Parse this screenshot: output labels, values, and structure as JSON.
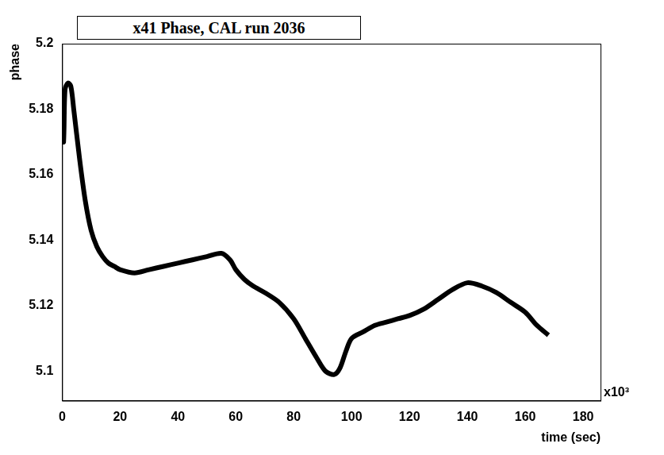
{
  "chart_data": {
    "type": "line",
    "title": "x41 Phase, CAL run 2036",
    "x_label": "time (sec)",
    "y_label": "phase",
    "annotations": [
      "x10³"
    ],
    "x": [
      0,
      0.5,
      1,
      2,
      3,
      4,
      6,
      8,
      10,
      12,
      14,
      16,
      18,
      20,
      25,
      30,
      35,
      40,
      45,
      50,
      55,
      58,
      60,
      63,
      66,
      70,
      75,
      80,
      84,
      88,
      91,
      94,
      96,
      98,
      100,
      104,
      108,
      112,
      116,
      120,
      125,
      130,
      135,
      140,
      145,
      150,
      155,
      160,
      164,
      168
    ],
    "values": [
      5.171,
      5.17,
      5.186,
      5.188,
      5.187,
      5.18,
      5.165,
      5.152,
      5.143,
      5.138,
      5.135,
      5.133,
      5.132,
      5.131,
      5.13,
      5.131,
      5.132,
      5.133,
      5.134,
      5.135,
      5.136,
      5.134,
      5.131,
      5.128,
      5.126,
      5.124,
      5.121,
      5.116,
      5.11,
      5.104,
      5.1,
      5.099,
      5.101,
      5.106,
      5.11,
      5.112,
      5.114,
      5.115,
      5.116,
      5.117,
      5.119,
      5.122,
      5.125,
      5.127,
      5.126,
      5.124,
      5.121,
      5.118,
      5.114,
      5.111
    ],
    "color": "#000000",
    "xlim": [
      0,
      186
    ],
    "xticks": [
      0,
      20,
      40,
      60,
      80,
      100,
      120,
      140,
      160,
      180
    ],
    "ylim": [
      5.091,
      5.2
    ],
    "yticks": [
      5.1,
      5.12,
      5.14,
      5.16,
      5.18,
      5.2
    ],
    "grid": false
  }
}
